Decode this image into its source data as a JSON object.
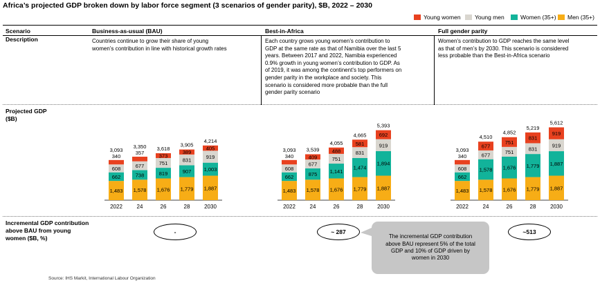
{
  "title": "Africa’s projected GDP broken down by labor force segment (3 scenarios of gender parity), $B, 2022 – 2030",
  "legend": [
    {
      "label": "Young women",
      "color": "#e8411f"
    },
    {
      "label": "Young men",
      "color": "#d9d6cf"
    },
    {
      "label": "Women (35+)",
      "color": "#12b39a"
    },
    {
      "label": "Men (35+)",
      "color": "#f7ad16"
    }
  ],
  "headers": {
    "scenario": "Scenario",
    "bau": "Business-as-usual (BAU)",
    "bia": "Best-in-Africa",
    "fgp": "Full gender parity"
  },
  "rows": {
    "description": "Description",
    "projected_gdp": "Projected GDP",
    "projected_gdp_unit": "($B)",
    "incremental_line1": "Incremental GDP contribution",
    "incremental_line2": "above BAU from young",
    "incremental_line3": "women ($B, %)"
  },
  "descriptions": {
    "bau": [
      "Countries continue to grow their share of young",
      "women’s contribution in line with historical growth rates"
    ],
    "bia": [
      "Each country grows young women’s contribution to",
      "GDP at the same rate as that of Namibia over the last 5",
      "years. Between 2017 and 2022, Namibia experienced",
      "0.9% growth in young women’s contribution to GDP. As",
      "of 2019, it was among the continent’s top performers on",
      "gender parity in the workplace and society. This",
      "scenario is considered more probable than the full",
      "gender parity scenario"
    ],
    "fgp": [
      "Women’s contribution to GDP reaches the same level",
      "as that of men’s by 2030. This scenario is considered",
      "less probable than the Best-in-Africa scenario"
    ]
  },
  "incremental": {
    "bau": "-",
    "bia": "~ 287",
    "fgp": "~513"
  },
  "callout": [
    "The incremental GDP contribution",
    "above BAU represent 5% of the total",
    "GDP and 10% of GDP driven by",
    "women in 2030"
  ],
  "source": "Source: IHS Markit, International Labour Organization",
  "chart_data": [
    {
      "type": "bar",
      "stacked": true,
      "scenario": "Business-as-usual (BAU)",
      "categories": [
        "2022",
        "24",
        "26",
        "28",
        "2030"
      ],
      "series": [
        {
          "name": "Men (35+)",
          "values": [
            1483,
            1578,
            1676,
            1779,
            1887
          ]
        },
        {
          "name": "Women (35+)",
          "values": [
            662,
            738,
            819,
            907,
            1003
          ]
        },
        {
          "name": "Young men",
          "values": [
            608,
            677,
            751,
            831,
            919
          ]
        },
        {
          "name": "Young women",
          "values": [
            340,
            357,
            373,
            389,
            405
          ]
        }
      ],
      "totals": [
        "3,093",
        "3,350",
        "3,618",
        "3,905",
        "4,214"
      ]
    },
    {
      "type": "bar",
      "stacked": true,
      "scenario": "Best-in-Africa",
      "categories": [
        "2022",
        "24",
        "26",
        "28",
        "2030"
      ],
      "series": [
        {
          "name": "Men (35+)",
          "values": [
            1483,
            1578,
            1676,
            1779,
            1887
          ]
        },
        {
          "name": "Women (35+)",
          "values": [
            662,
            875,
            1141,
            1474,
            1894
          ]
        },
        {
          "name": "Young men",
          "values": [
            608,
            677,
            751,
            831,
            919
          ]
        },
        {
          "name": "Young women",
          "values": [
            340,
            409,
            488,
            581,
            692
          ]
        }
      ],
      "totals": [
        "3,093",
        "3,539",
        "4,055",
        "4,665",
        "5,393"
      ]
    },
    {
      "type": "bar",
      "stacked": true,
      "scenario": "Full gender parity",
      "categories": [
        "2022",
        "24",
        "26",
        "28",
        "2030"
      ],
      "series": [
        {
          "name": "Men (35+)",
          "values": [
            1483,
            1578,
            1676,
            1779,
            1887
          ]
        },
        {
          "name": "Women (35+)",
          "values": [
            662,
            1578,
            1676,
            1779,
            1887
          ]
        },
        {
          "name": "Young men",
          "values": [
            608,
            677,
            751,
            831,
            919
          ]
        },
        {
          "name": "Young women",
          "values": [
            340,
            677,
            751,
            831,
            919
          ]
        }
      ],
      "totals": [
        "3,093",
        "4,510",
        "4,852",
        "5,219",
        "5,612"
      ]
    }
  ]
}
